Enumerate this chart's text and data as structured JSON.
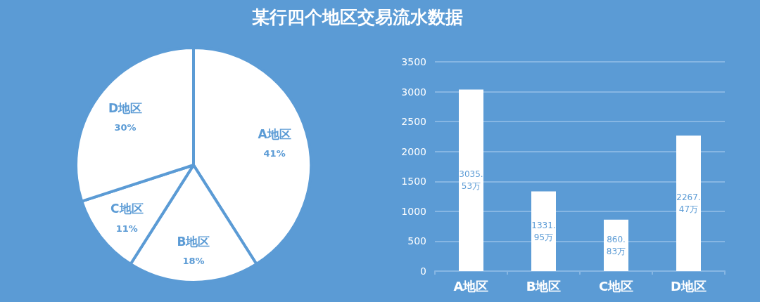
{
  "chart_data": [
    {
      "type": "pie",
      "title": "某行四个地区交易流水数据",
      "categories": [
        "A地区",
        "B地区",
        "C地区",
        "D地区"
      ],
      "values": [
        41,
        18,
        11,
        30
      ],
      "value_labels": [
        "41%",
        "18%",
        "11%",
        "30%"
      ],
      "colors": [
        "#ffffff",
        "#ffffff",
        "#ffffff",
        "#ffffff"
      ]
    },
    {
      "type": "bar",
      "categories": [
        "A地区",
        "B地区",
        "C地区",
        "D地区"
      ],
      "values": [
        3035.53,
        1331.95,
        860.83,
        2267.47
      ],
      "value_labels": [
        "3035.53万",
        "1331.95万",
        "860.83万",
        "2267.47万"
      ],
      "color": "#ffffff",
      "ylim": [
        0,
        3500
      ],
      "yticks": [
        0,
        500,
        1000,
        1500,
        2000,
        2500,
        3000,
        3500
      ],
      "grid": "y"
    }
  ]
}
